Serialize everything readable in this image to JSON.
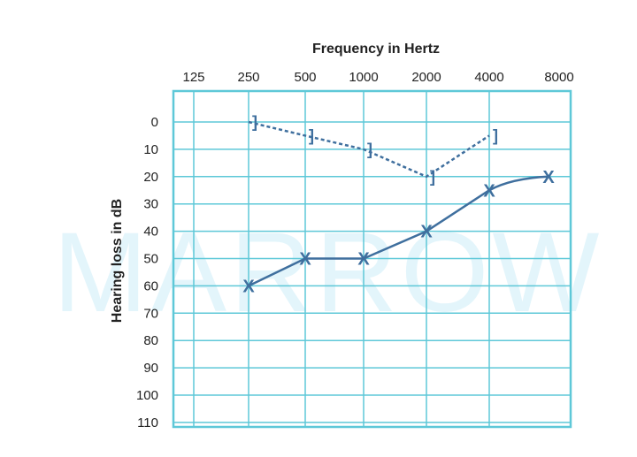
{
  "chart_data": {
    "type": "line",
    "title": "Frequency in Hertz",
    "ylabel": "Hearing loss in dB",
    "xlabel": "",
    "x_categories": [
      "125",
      "250",
      "500",
      "1000",
      "2000",
      "4000",
      "8000"
    ],
    "y_ticks": [
      "0",
      "10",
      "20",
      "30",
      "40",
      "50",
      "60",
      "70",
      "80",
      "90",
      "100",
      "110"
    ],
    "ylim": [
      0,
      110
    ],
    "y_inverted": true,
    "grid": true,
    "legend": "none",
    "series": [
      {
        "symbol": "]",
        "line_style": "dashed",
        "x": [
          "250",
          "500",
          "1000",
          "2000",
          "4000"
        ],
        "values": [
          0,
          5,
          10,
          20,
          5
        ]
      },
      {
        "symbol": "X",
        "line_style": "solid",
        "x": [
          "250",
          "500",
          "1000",
          "2000",
          "4000",
          "8000"
        ],
        "values": [
          60,
          50,
          50,
          40,
          25,
          20
        ]
      }
    ],
    "watermark": "MARROW",
    "colors": {
      "grid": "#5ec8d8",
      "series": "#3f6f9e",
      "watermark": "#e3f5fb",
      "text": "#222222"
    }
  }
}
